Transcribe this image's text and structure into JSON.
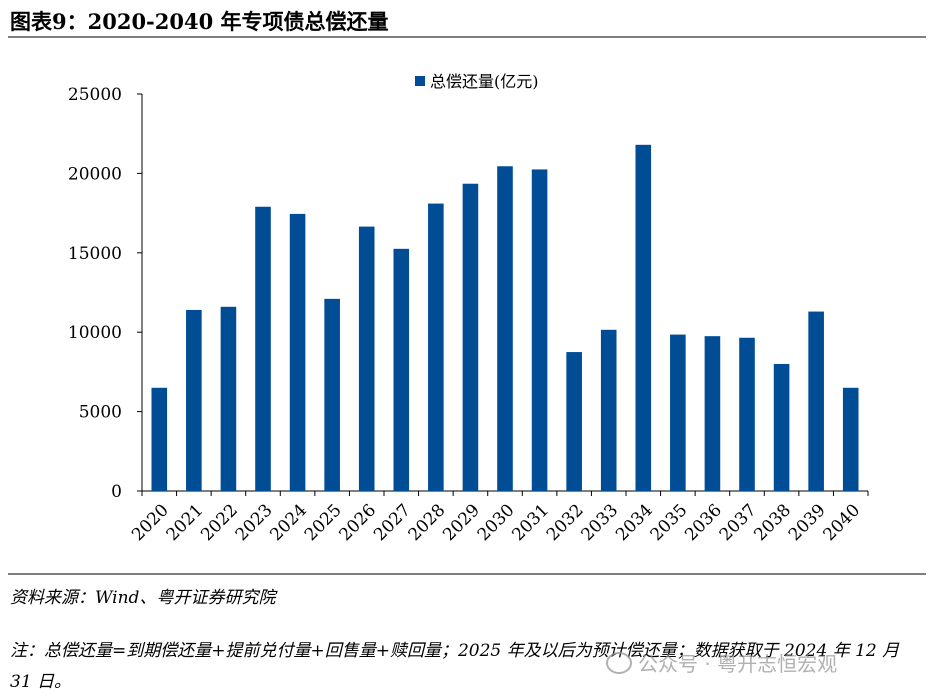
{
  "figure": {
    "title": "图表9：2020-2040 年专项债总偿还量",
    "source": "资料来源：Wind、粤开证券研究院",
    "note": "注：总偿还量=到期偿还量+提前兑付量+回售量+赎回量；2025  年及以后为预计偿还量；数据获取于 2024 年 12 月 31 日。",
    "watermark": "公众号 · 粤开志恒宏观"
  },
  "colors": {
    "bar": "#004D96",
    "axis": "#000000",
    "rule": "#7F7F7F"
  },
  "chart_data": {
    "type": "bar",
    "title": "",
    "legend_position": "top-center",
    "series": [
      {
        "name": "总偿还量(亿元)",
        "values": [
          6500,
          11400,
          11600,
          17900,
          17450,
          12100,
          16650,
          15250,
          18100,
          19350,
          20450,
          20250,
          8750,
          10150,
          21800,
          9850,
          9750,
          9650,
          8000,
          11300,
          6500
        ]
      }
    ],
    "categories": [
      "2020",
      "2021",
      "2022",
      "2023",
      "2024",
      "2025",
      "2026",
      "2027",
      "2028",
      "2029",
      "2030",
      "2031",
      "2032",
      "2033",
      "2034",
      "2035",
      "2036",
      "2037",
      "2038",
      "2039",
      "2040"
    ],
    "xlabel": "",
    "ylabel": "",
    "ylim": [
      0,
      25000
    ],
    "yticks": [
      "0",
      "5000",
      "10000",
      "15000",
      "20000",
      "25000"
    ],
    "grid": false
  }
}
